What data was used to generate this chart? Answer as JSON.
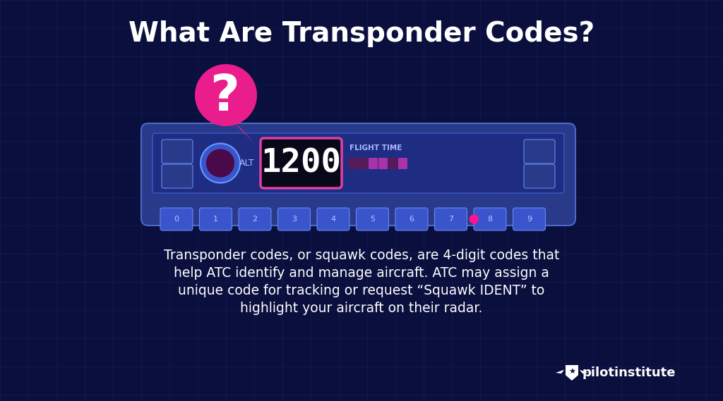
{
  "title": "What Are Transponder Codes?",
  "title_color": "#ffffff",
  "title_fontsize": 28,
  "bg_color": "#0a0f3d",
  "grid_color": "#1a2a6e",
  "transponder_bg": "#2a3a8a",
  "squawk_code": "1200",
  "squawk_color": "#ffffff",
  "squawk_box_color": "#e040a0",
  "alt_label": "ALT",
  "flight_time_label": "FLIGHT TIME",
  "label_color": "#aabbff",
  "bubble_color": "#e91e8c",
  "question_mark": "?",
  "question_color": "#ffffff",
  "dial_outer_color": "#3a55cc",
  "dial_inner_color": "#4a0a4a",
  "button_color": "#3a55cc",
  "button_border": "#6688ee",
  "digit_keys": [
    "0",
    "1",
    "2",
    "3",
    "4",
    "5",
    "6",
    "7",
    "8",
    "9"
  ],
  "pink_dot_color": "#ff1493",
  "bar_color": "#5a1a5a",
  "bar_bright_color": "#aa33aa",
  "body_text_line1": "Transponder codes, or squawk codes, are 4-digit codes that",
  "body_text_line2": "help ATC identify and manage aircraft. ATC may assign a",
  "body_text_line3": "unique code for tracking or request “Squawk IDENT” to",
  "body_text_line4": "highlight your aircraft on their radar.",
  "body_color": "#ffffff",
  "body_fontsize": 13.5,
  "logo_color": "#ffffff"
}
